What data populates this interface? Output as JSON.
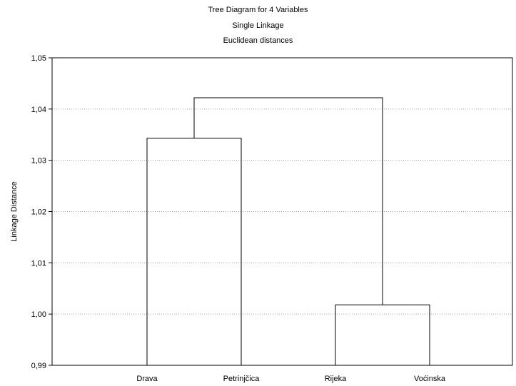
{
  "chart_data": {
    "type": "dendrogram",
    "title": [
      "Tree Diagram for 4  Variables",
      "Single Linkage",
      "Euclidean distances"
    ],
    "ylabel": "Linkage Distance",
    "xlabel": "",
    "ylim": [
      0.99,
      1.05
    ],
    "yticks": [
      0.99,
      1.0,
      1.01,
      1.02,
      1.03,
      1.04,
      1.05
    ],
    "ytick_labels": [
      "0,99",
      "1,00",
      "1,01",
      "1,02",
      "1,03",
      "1,04",
      "1,05"
    ],
    "grid": true,
    "leaves": [
      "Drava",
      "Petrinjčica",
      "Rijeka",
      "Voćinska"
    ],
    "merges": [
      {
        "left": "Drava",
        "right": "Petrinjčica",
        "distance": 1.0343
      },
      {
        "left": "Rijeka",
        "right": "Voćinska",
        "distance": 1.0018
      },
      {
        "left": "Drava+Petrinjčica",
        "right": "Rijeka+Voćinska",
        "distance": 1.0422
      }
    ]
  }
}
